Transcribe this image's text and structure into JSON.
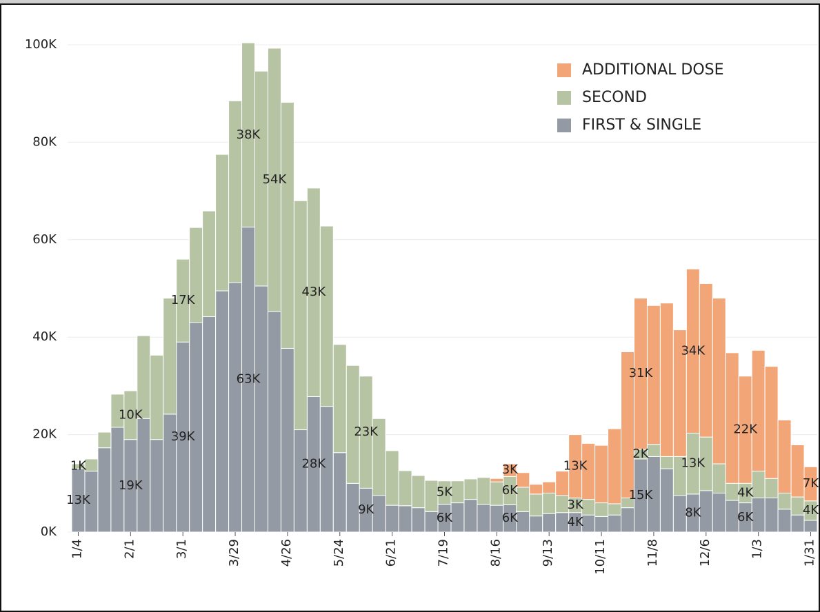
{
  "chart_data": {
    "type": "stacked_bar",
    "categories": [
      "1/4",
      null,
      null,
      null,
      "2/1",
      null,
      null,
      null,
      "3/1",
      null,
      null,
      null,
      "3/29",
      null,
      null,
      null,
      "4/26",
      null,
      null,
      null,
      "5/24",
      null,
      null,
      null,
      "6/21",
      null,
      null,
      null,
      "7/19",
      null,
      null,
      null,
      "8/16",
      null,
      null,
      null,
      "9/13",
      null,
      null,
      null,
      "10/11",
      null,
      null,
      null,
      "11/8",
      null,
      null,
      null,
      "12/6",
      null,
      null,
      null,
      "1/3",
      null,
      null,
      null,
      "1/31"
    ],
    "series": [
      {
        "name": "FIRST & SINGLE",
        "color": "#939aa4",
        "values": [
          13000,
          12500,
          17300,
          21500,
          19000,
          23300,
          19000,
          24200,
          39000,
          43000,
          44200,
          49500,
          51200,
          62600,
          50500,
          45300,
          37700,
          21000,
          27800,
          25800,
          16300,
          10000,
          9000,
          7500,
          5500,
          5400,
          5000,
          4200,
          5700,
          6000,
          6700,
          5700,
          5500,
          5600,
          4200,
          3300,
          3800,
          4000,
          4000,
          3500,
          3200,
          3500,
          5000,
          15000,
          15500,
          13000,
          7500,
          7800,
          8500,
          8000,
          6500,
          6000,
          7000,
          7000,
          4700,
          3500,
          2400
        ],
        "value_labels": [
          "13K",
          null,
          null,
          null,
          "19K",
          null,
          null,
          null,
          "39K",
          null,
          null,
          null,
          null,
          "63K",
          null,
          null,
          null,
          null,
          "28K",
          null,
          null,
          null,
          "9K",
          null,
          null,
          null,
          null,
          null,
          "6K",
          null,
          null,
          null,
          null,
          "6K",
          null,
          null,
          null,
          null,
          "4K",
          null,
          null,
          null,
          null,
          "15K",
          null,
          null,
          null,
          "8K",
          null,
          null,
          null,
          "6K",
          null,
          null,
          null,
          null,
          null
        ]
      },
      {
        "name": "SECOND",
        "color": "#b6c4a4",
        "values": [
          1000,
          2500,
          3200,
          6800,
          10000,
          17000,
          17300,
          23800,
          17000,
          19500,
          21700,
          28000,
          37300,
          37800,
          44100,
          54000,
          50500,
          47000,
          42800,
          37000,
          22200,
          24200,
          23000,
          15800,
          11200,
          7200,
          6600,
          6400,
          4800,
          4500,
          4200,
          5500,
          4800,
          5800,
          5000,
          4500,
          4200,
          3500,
          3000,
          3200,
          2800,
          2300,
          2000,
          2000,
          2500,
          2500,
          8000,
          12500,
          11000,
          6000,
          3500,
          4000,
          5500,
          4000,
          3300,
          3700,
          4000
        ],
        "value_labels": [
          "1K",
          null,
          null,
          null,
          "10K",
          null,
          null,
          null,
          "17K",
          null,
          null,
          null,
          null,
          "38K",
          null,
          "54K",
          null,
          null,
          "43K",
          null,
          null,
          null,
          "23K",
          null,
          null,
          null,
          null,
          null,
          "5K",
          null,
          null,
          null,
          null,
          "6K",
          null,
          null,
          null,
          null,
          "3K",
          null,
          null,
          null,
          null,
          "2K",
          null,
          null,
          null,
          "13K",
          null,
          null,
          null,
          "4K",
          null,
          null,
          null,
          null,
          "4K"
        ]
      },
      {
        "name": "ADDITIONAL DOSE",
        "color": "#f2a678",
        "values": [
          null,
          null,
          null,
          null,
          null,
          null,
          null,
          null,
          null,
          null,
          null,
          null,
          null,
          null,
          null,
          null,
          null,
          null,
          null,
          null,
          null,
          null,
          null,
          null,
          null,
          null,
          null,
          null,
          null,
          null,
          null,
          null,
          700,
          2600,
          3000,
          2000,
          2300,
          5000,
          13000,
          11500,
          11800,
          15400,
          30000,
          31000,
          28500,
          31500,
          26000,
          33700,
          31500,
          34000,
          26800,
          22000,
          24800,
          23000,
          15000,
          10700,
          7000
        ],
        "value_labels": [
          null,
          null,
          null,
          null,
          null,
          null,
          null,
          null,
          null,
          null,
          null,
          null,
          null,
          null,
          null,
          null,
          null,
          null,
          null,
          null,
          null,
          null,
          null,
          null,
          null,
          null,
          null,
          null,
          null,
          null,
          null,
          null,
          null,
          "3K",
          null,
          null,
          null,
          null,
          "13K",
          null,
          null,
          null,
          null,
          "31K",
          null,
          null,
          null,
          "34K",
          null,
          null,
          null,
          "22K",
          null,
          null,
          null,
          null,
          "7K"
        ]
      }
    ],
    "ylim": [
      0,
      100000
    ],
    "yticks": [
      {
        "value": 0,
        "label": "0K"
      },
      {
        "value": 20000,
        "label": "20K"
      },
      {
        "value": 40000,
        "label": "40K"
      },
      {
        "value": 60000,
        "label": "60K"
      },
      {
        "value": 80000,
        "label": "80K"
      },
      {
        "value": 100000,
        "label": "100K"
      }
    ],
    "grid": true,
    "legend": "top-right"
  }
}
